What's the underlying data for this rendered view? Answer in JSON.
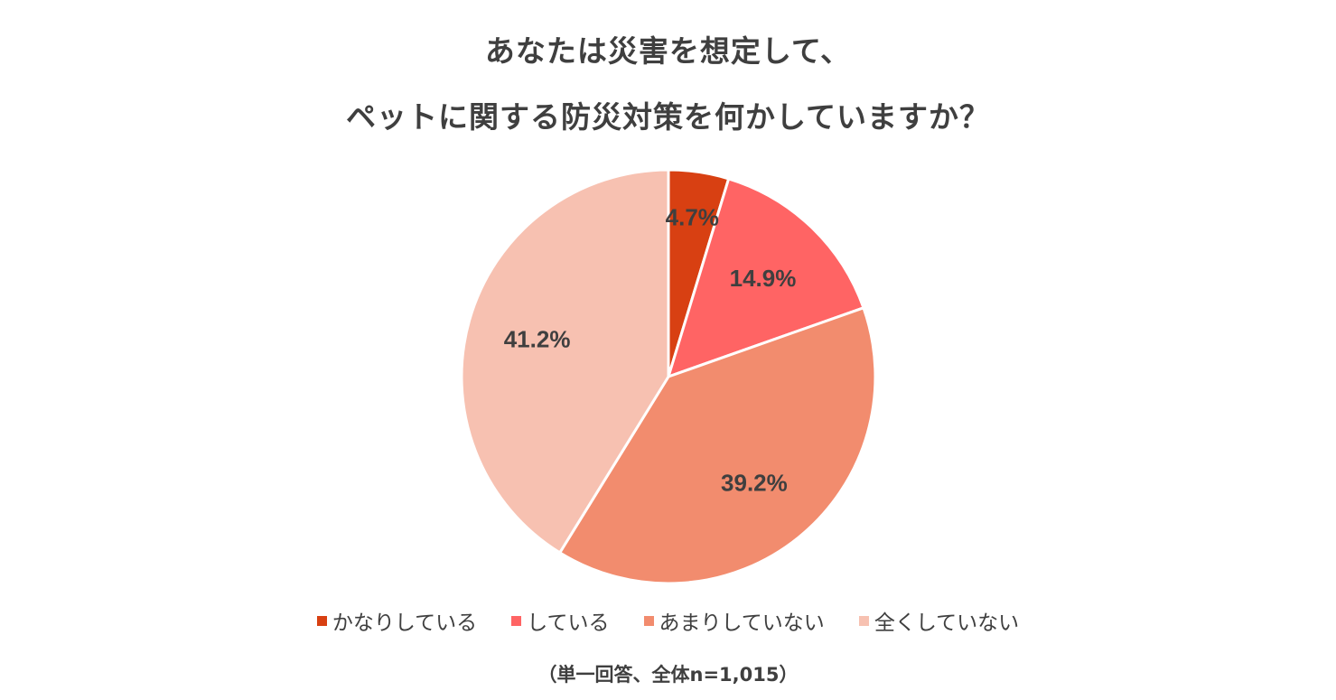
{
  "title": {
    "line1": "あなたは災害を想定して、",
    "line2": "ペットに関する防災対策を何かしていますか？"
  },
  "chart_data": {
    "type": "pie",
    "title": "あなたは災害を想定して、ペットに関する防災対策を何かしていますか？",
    "categories": [
      "かなりしている",
      "している",
      "あまりしていない",
      "全くしていない"
    ],
    "values": [
      4.7,
      14.9,
      39.2,
      41.2
    ],
    "labels": [
      "4.7%",
      "14.9%",
      "39.2%",
      "41.2%"
    ],
    "colors": [
      "#d84012",
      "#ff6464",
      "#f28c6e",
      "#f7c1b1"
    ],
    "start_angle": "12 o'clock",
    "direction": "clockwise",
    "legend_position": "bottom"
  },
  "footnote": "（単一回答、全体n=1,015）"
}
